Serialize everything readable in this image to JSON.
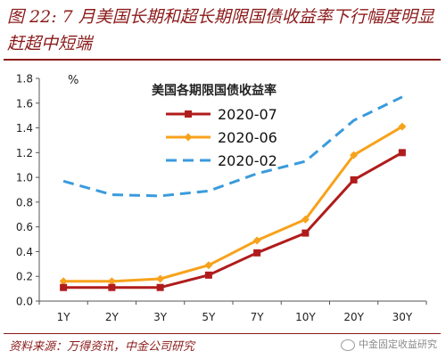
{
  "figure": {
    "title": "图 22: 7 月美国长期和超长期限国债收益率下行幅度明显赶超中短端",
    "source": "资料来源：万得资讯，中金公司研究",
    "watermark": "中金固定收益研究"
  },
  "chart_data": {
    "type": "line",
    "title": "美国各期限国债收益率",
    "ylabel": "%",
    "xlabel": "",
    "categories": [
      "1Y",
      "2Y",
      "3Y",
      "5Y",
      "7Y",
      "10Y",
      "20Y",
      "30Y"
    ],
    "ylim": [
      0,
      1.8
    ],
    "yticks": [
      0.0,
      0.2,
      0.4,
      0.6,
      0.8,
      1.0,
      1.2,
      1.4,
      1.6,
      1.8
    ],
    "yticklabels": [
      "0.0",
      "0.2",
      "0.4",
      "0.6",
      "0.8",
      "1.0",
      "1.2",
      "1.4",
      "1.6",
      "1.8"
    ],
    "grid": false,
    "legend_position": "top-left",
    "series": [
      {
        "name": "2020-07",
        "values": [
          0.11,
          0.11,
          0.11,
          0.21,
          0.39,
          0.55,
          0.98,
          1.2
        ],
        "color": "#b01c1c",
        "style": "solid",
        "marker": "square"
      },
      {
        "name": "2020-06",
        "values": [
          0.16,
          0.16,
          0.18,
          0.29,
          0.49,
          0.66,
          1.18,
          1.41
        ],
        "color": "#f7a21b",
        "style": "solid",
        "marker": "diamond"
      },
      {
        "name": "2020-02",
        "values": [
          0.97,
          0.86,
          0.85,
          0.89,
          1.03,
          1.13,
          1.46,
          1.65
        ],
        "color": "#3a9bdc",
        "style": "dashed",
        "marker": "none"
      }
    ]
  }
}
